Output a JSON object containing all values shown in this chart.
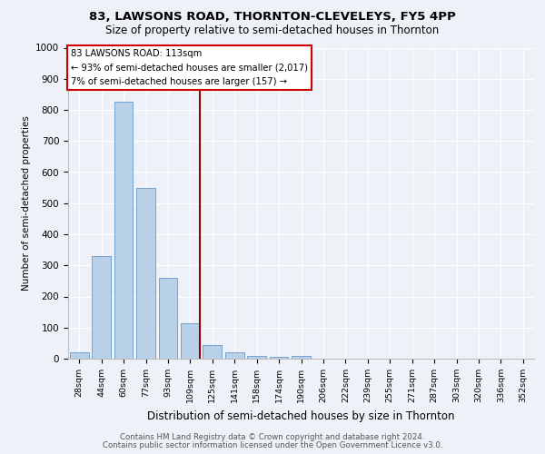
{
  "title1": "83, LAWSONS ROAD, THORNTON-CLEVELEYS, FY5 4PP",
  "title2": "Size of property relative to semi-detached houses in Thornton",
  "xlabel": "Distribution of semi-detached houses by size in Thornton",
  "ylabel": "Number of semi-detached properties",
  "categories": [
    "28sqm",
    "44sqm",
    "60sqm",
    "77sqm",
    "93sqm",
    "109sqm",
    "125sqm",
    "141sqm",
    "158sqm",
    "174sqm",
    "190sqm",
    "206sqm",
    "222sqm",
    "239sqm",
    "255sqm",
    "271sqm",
    "287sqm",
    "303sqm",
    "320sqm",
    "336sqm",
    "352sqm"
  ],
  "values": [
    20,
    330,
    825,
    550,
    260,
    113,
    45,
    20,
    10,
    5,
    8,
    0,
    0,
    0,
    0,
    0,
    0,
    0,
    0,
    0,
    0
  ],
  "bar_color": "#b8d0e8",
  "bar_edge_color": "#6699cc",
  "vline_color": "#990000",
  "annotation_text": "83 LAWSONS ROAD: 113sqm\n← 93% of semi-detached houses are smaller (2,017)\n7% of semi-detached houses are larger (157) →",
  "annotation_box_color": "#ffffff",
  "annotation_box_edge": "#cc0000",
  "ylim": [
    0,
    1000
  ],
  "yticks": [
    0,
    100,
    200,
    300,
    400,
    500,
    600,
    700,
    800,
    900,
    1000
  ],
  "footer1": "Contains HM Land Registry data © Crown copyright and database right 2024.",
  "footer2": "Contains public sector information licensed under the Open Government Licence v3.0.",
  "bg_color": "#eef2f8",
  "plot_bg_color": "#eef2f8"
}
